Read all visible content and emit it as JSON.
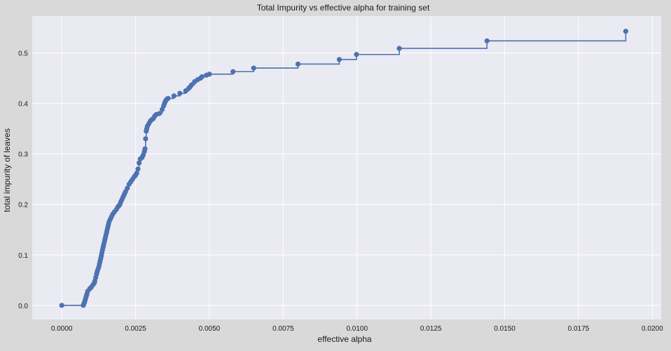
{
  "chart_data": {
    "type": "line",
    "title": "Total Impurity vs effective alpha for training set",
    "xlabel": "effective alpha",
    "ylabel": "total impurity of leaves",
    "xlim": [
      -0.001,
      0.0203
    ],
    "ylim": [
      -0.028,
      0.573
    ],
    "xticks": [
      0.0,
      0.0025,
      0.005,
      0.0075,
      0.01,
      0.0125,
      0.015,
      0.0175,
      0.02
    ],
    "xtick_labels": [
      "0.0000",
      "0.0025",
      "0.0050",
      "0.0075",
      "0.0100",
      "0.0125",
      "0.0150",
      "0.0175",
      "0.0200"
    ],
    "yticks": [
      0.0,
      0.1,
      0.2,
      0.3,
      0.4,
      0.5
    ],
    "ytick_labels": [
      "0.0",
      "0.1",
      "0.2",
      "0.3",
      "0.4",
      "0.5"
    ],
    "grid": true,
    "drawstyle": "steps-post",
    "marker": "circle",
    "colors": {
      "line": "#4c72b0",
      "background": "#eaeaf2",
      "grid": "#ffffff",
      "figure": "#d9d9d9"
    },
    "series": [
      {
        "x": [
          0.0,
          0.00073,
          0.00075,
          0.00077,
          0.00079,
          0.00081,
          0.00083,
          0.00085,
          0.00088,
          0.00095,
          0.001,
          0.00105,
          0.0011,
          0.00112,
          0.00115,
          0.00118,
          0.0012,
          0.00123,
          0.00126,
          0.00128,
          0.0013,
          0.00132,
          0.00134,
          0.00136,
          0.00138,
          0.0014,
          0.00142,
          0.00144,
          0.00146,
          0.00148,
          0.0015,
          0.00152,
          0.00154,
          0.00156,
          0.00158,
          0.0016,
          0.00164,
          0.00168,
          0.00172,
          0.00178,
          0.00185,
          0.0019,
          0.00193,
          0.00197,
          0.002,
          0.00204,
          0.00208,
          0.00212,
          0.00216,
          0.00222,
          0.00228,
          0.00234,
          0.0024,
          0.00246,
          0.0025,
          0.00254,
          0.00258,
          0.00262,
          0.00266,
          0.00272,
          0.00276,
          0.0028,
          0.00282,
          0.00284,
          0.00286,
          0.00288,
          0.0029,
          0.00295,
          0.003,
          0.00305,
          0.0031,
          0.00315,
          0.0032,
          0.0033,
          0.0034,
          0.00345,
          0.00348,
          0.0035,
          0.00353,
          0.00355,
          0.0036,
          0.0038,
          0.004,
          0.0042,
          0.0043,
          0.00435,
          0.0044,
          0.0045,
          0.0046,
          0.0047,
          0.00475,
          0.0049,
          0.005,
          0.0058,
          0.0065,
          0.008,
          0.0094,
          0.00998,
          0.01143,
          0.0144,
          0.0191
        ],
        "y": [
          0.0,
          0.0,
          0.003,
          0.006,
          0.01,
          0.014,
          0.018,
          0.022,
          0.028,
          0.033,
          0.036,
          0.04,
          0.044,
          0.048,
          0.055,
          0.062,
          0.067,
          0.072,
          0.077,
          0.083,
          0.088,
          0.093,
          0.098,
          0.104,
          0.11,
          0.115,
          0.12,
          0.125,
          0.13,
          0.135,
          0.14,
          0.145,
          0.15,
          0.155,
          0.16,
          0.165,
          0.17,
          0.175,
          0.18,
          0.185,
          0.19,
          0.195,
          0.197,
          0.2,
          0.205,
          0.21,
          0.215,
          0.22,
          0.225,
          0.232,
          0.24,
          0.245,
          0.25,
          0.255,
          0.258,
          0.262,
          0.27,
          0.282,
          0.29,
          0.293,
          0.298,
          0.305,
          0.31,
          0.33,
          0.345,
          0.35,
          0.355,
          0.36,
          0.365,
          0.368,
          0.37,
          0.375,
          0.378,
          0.38,
          0.388,
          0.395,
          0.4,
          0.403,
          0.406,
          0.408,
          0.41,
          0.415,
          0.42,
          0.425,
          0.43,
          0.433,
          0.437,
          0.443,
          0.447,
          0.45,
          0.453,
          0.456,
          0.458,
          0.463,
          0.47,
          0.478,
          0.487,
          0.497,
          0.509,
          0.524,
          0.543
        ]
      }
    ]
  }
}
